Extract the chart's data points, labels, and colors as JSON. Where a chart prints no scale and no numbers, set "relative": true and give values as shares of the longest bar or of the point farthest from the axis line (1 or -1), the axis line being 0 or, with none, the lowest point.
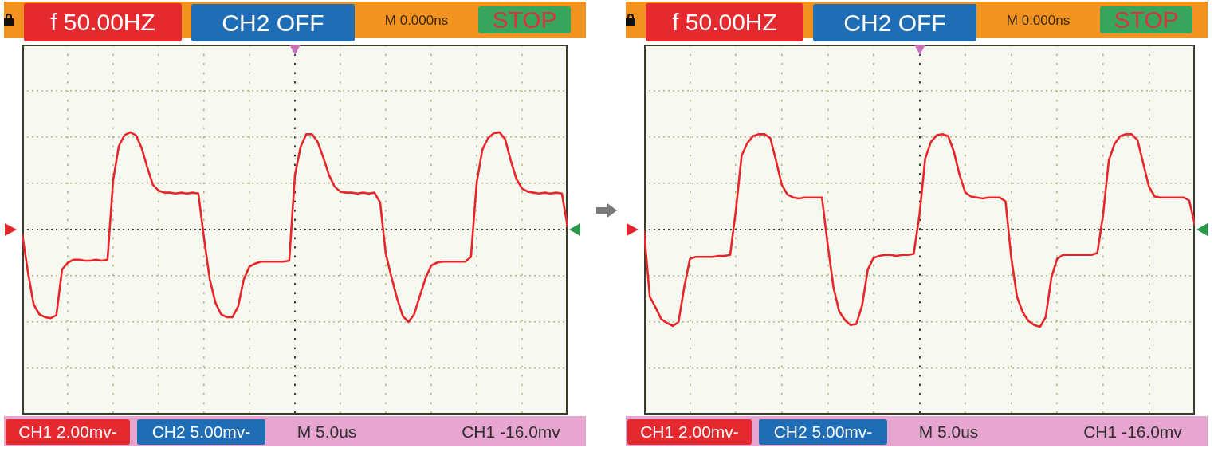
{
  "chart_data": [
    {
      "type": "line",
      "relative": true,
      "grid": true,
      "categories": [
        null,
        null,
        null,
        null,
        null,
        null,
        null,
        null,
        null,
        null,
        null,
        null,
        null,
        null,
        null,
        null,
        null,
        null,
        null,
        null,
        null,
        null,
        null,
        null,
        null,
        null,
        null,
        null,
        null,
        null,
        null,
        null,
        null,
        null,
        null,
        null,
        null,
        null,
        null,
        null,
        null,
        null,
        null,
        null,
        null,
        null,
        null,
        null,
        null,
        null,
        null,
        null,
        null,
        null,
        null,
        null,
        null,
        null,
        null,
        null,
        null,
        null,
        null,
        null,
        null,
        null,
        null,
        null,
        null,
        null,
        null,
        null,
        null,
        null,
        null,
        null,
        null,
        null,
        null,
        null,
        null,
        null,
        null,
        null,
        null,
        null,
        null,
        null,
        null,
        null,
        null,
        null,
        null,
        null,
        null,
        null,
        null
      ],
      "series": [
        {
          "color": "#e8262a",
          "values": [
            -0.05,
            -0.44,
            -0.77,
            -0.87,
            -0.9,
            -0.91,
            -0.88,
            -0.41,
            -0.34,
            -0.31,
            -0.31,
            -0.32,
            -0.32,
            -0.31,
            -0.32,
            -0.31,
            0.51,
            0.86,
            0.97,
            1,
            0.97,
            0.84,
            0.64,
            0.46,
            0.4,
            0.38,
            0.38,
            0.37,
            0.38,
            0.37,
            0.38,
            0.37,
            -0.09,
            -0.51,
            -0.75,
            -0.87,
            -0.9,
            -0.9,
            -0.79,
            -0.51,
            -0.38,
            -0.35,
            -0.33,
            -0.33,
            -0.33,
            -0.33,
            -0.33,
            -0.32,
            0.56,
            0.85,
            0.98,
            0.98,
            0.9,
            0.74,
            0.56,
            0.44,
            0.39,
            0.38,
            0.38,
            0.37,
            0.38,
            0.37,
            0.38,
            0.28,
            -0.25,
            -0.49,
            -0.71,
            -0.89,
            -0.95,
            -0.87,
            -0.68,
            -0.5,
            -0.37,
            -0.34,
            -0.33,
            -0.33,
            -0.33,
            -0.33,
            -0.33,
            -0.28,
            0.48,
            0.82,
            0.94,
            0.99,
            1,
            0.93,
            0.71,
            0.52,
            0.42,
            0.39,
            0.38,
            0.37,
            0.38,
            0.37,
            0.38,
            0.37,
            0.03
          ]
        }
      ],
      "ref_lines": [
        {
          "axis": "y",
          "value": 0,
          "color": "#3a3a3a",
          "line_style": "dotted"
        }
      ],
      "annotations": [
        "f 50.00HZ",
        "CH2 OFF",
        "M 0.000ns",
        "STOP",
        "CH1 2.00mv-",
        "CH2 5.00mv-",
        "M 5.0us",
        "CH1 -16.0mv"
      ]
    },
    {
      "type": "line",
      "relative": true,
      "grid": true,
      "categories": [
        null,
        null,
        null,
        null,
        null,
        null,
        null,
        null,
        null,
        null,
        null,
        null,
        null,
        null,
        null,
        null,
        null,
        null,
        null,
        null,
        null,
        null,
        null,
        null,
        null,
        null,
        null,
        null,
        null,
        null,
        null,
        null,
        null,
        null,
        null,
        null,
        null,
        null,
        null,
        null,
        null,
        null,
        null,
        null,
        null,
        null,
        null,
        null,
        null,
        null,
        null,
        null,
        null,
        null,
        null,
        null,
        null,
        null,
        null,
        null,
        null,
        null,
        null,
        null,
        null,
        null,
        null,
        null,
        null,
        null,
        null,
        null,
        null,
        null,
        null,
        null,
        null,
        null,
        null,
        null,
        null,
        null,
        null,
        null,
        null,
        null,
        null,
        null,
        null,
        null,
        null,
        null,
        null,
        null,
        null,
        null,
        null
      ],
      "series": [
        {
          "color": "#e8262a",
          "values": [
            -0.02,
            -0.69,
            -0.8,
            -0.92,
            -0.96,
            -0.99,
            -0.95,
            -0.59,
            -0.3,
            -0.28,
            -0.28,
            -0.28,
            -0.28,
            -0.27,
            -0.27,
            -0.26,
            0.2,
            0.76,
            0.89,
            0.96,
            0.98,
            0.98,
            0.94,
            0.71,
            0.46,
            0.36,
            0.33,
            0.32,
            0.33,
            0.33,
            0.33,
            0.33,
            -0.15,
            -0.59,
            -0.84,
            -0.93,
            -0.98,
            -0.97,
            -0.78,
            -0.41,
            -0.29,
            -0.27,
            -0.26,
            -0.26,
            -0.27,
            -0.26,
            -0.26,
            -0.25,
            0.15,
            0.73,
            0.9,
            0.97,
            0.98,
            0.96,
            0.8,
            0.56,
            0.38,
            0.34,
            0.33,
            0.32,
            0.33,
            0.33,
            0.33,
            0.29,
            -0.29,
            -0.69,
            -0.85,
            -0.94,
            -0.98,
            -1,
            -0.9,
            -0.49,
            -0.3,
            -0.26,
            -0.26,
            -0.26,
            -0.26,
            -0.26,
            -0.26,
            -0.24,
            0.15,
            0.71,
            0.88,
            0.96,
            0.98,
            0.98,
            0.92,
            0.68,
            0.44,
            0.34,
            0.33,
            0.33,
            0.33,
            0.33,
            0.33,
            0.3,
            0.05
          ]
        }
      ],
      "ref_lines": [
        {
          "axis": "y",
          "value": 0,
          "color": "#3a3a3a",
          "line_style": "dotted"
        }
      ],
      "annotations": [
        "f 50.00HZ",
        "CH2 OFF",
        "M 0.000ns",
        "STOP",
        "CH1 2.00mv-",
        "CH2 5.00mv-",
        "M 5.0us",
        "CH1 -16.0mv"
      ]
    }
  ]
}
